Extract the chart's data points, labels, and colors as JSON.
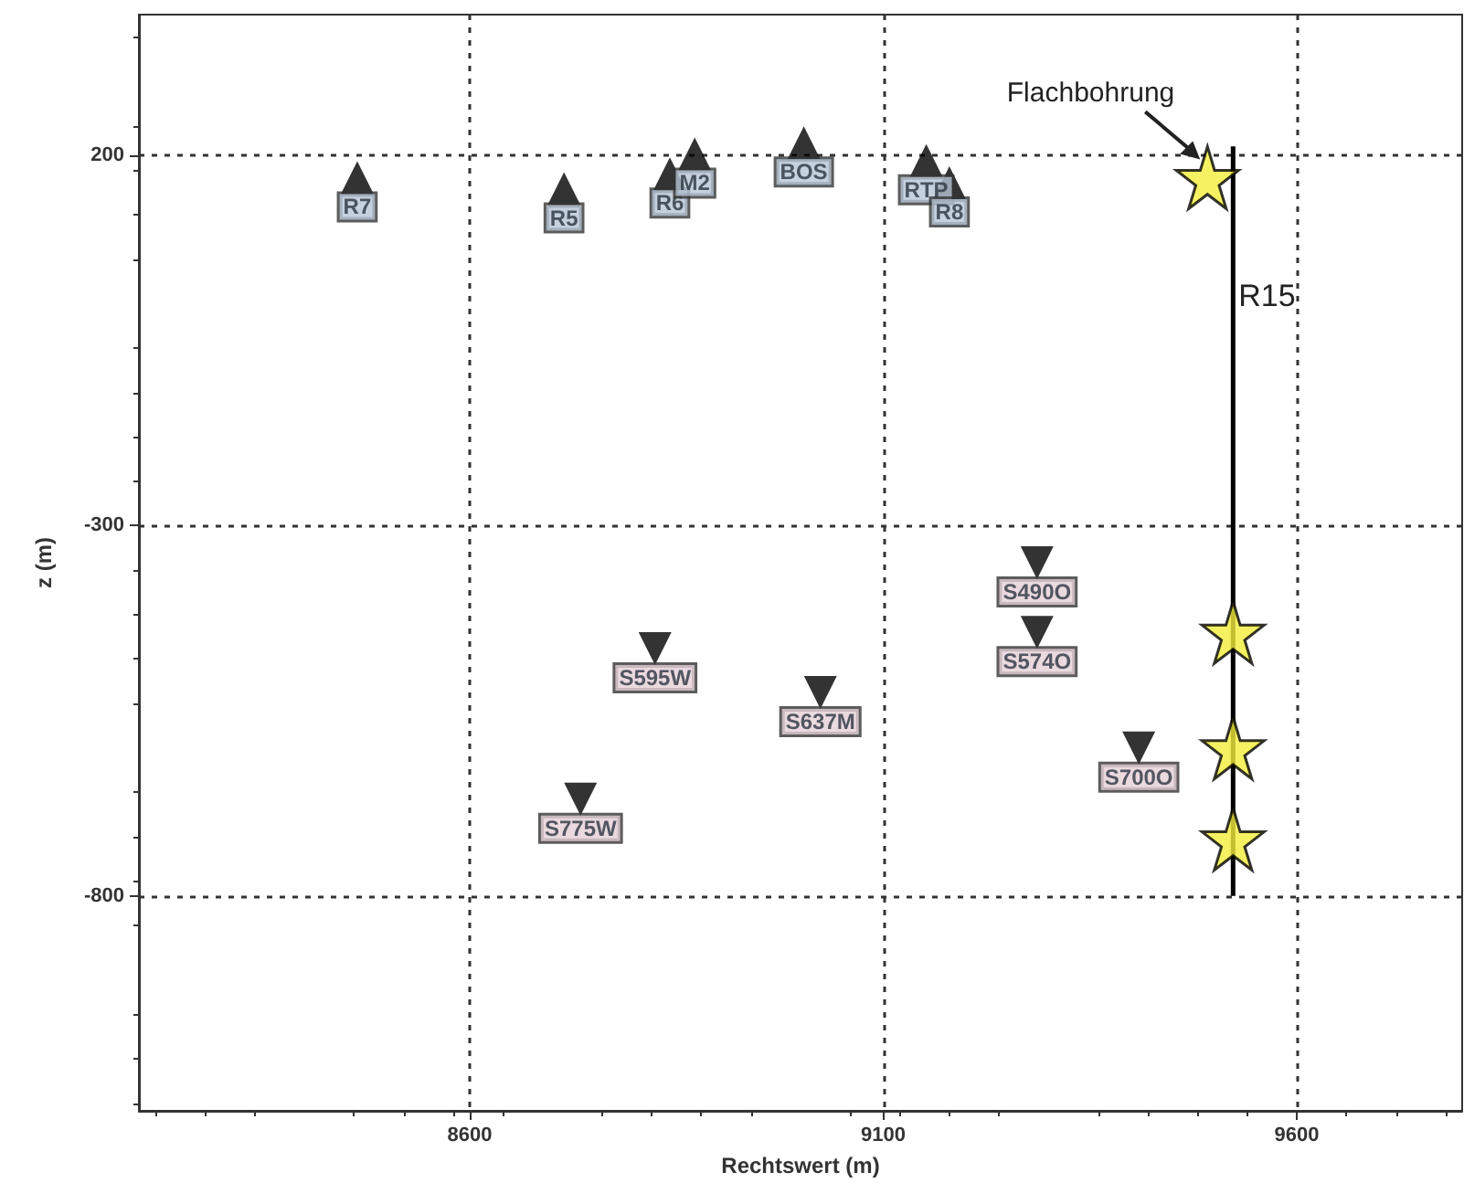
{
  "chart_data": {
    "type": "scatter",
    "xlabel": "Rechtswert (m)",
    "ylabel": "z (m)",
    "xlim": [
      8200,
      9800
    ],
    "xticks": [
      8600,
      9100,
      9600
    ],
    "ylim": [
      -1090,
      390
    ],
    "yticks": [
      -800,
      -300,
      200
    ],
    "grid": true,
    "legend": false,
    "series": [
      {
        "marker": "triangle",
        "color": "#000000",
        "x": [
          8464,
          8714,
          8842,
          8872,
          9004,
          9152,
          9180
        ],
        "values": [
          170,
          155,
          175,
          202,
          217,
          193,
          163
        ],
        "value_labels": [
          "R7",
          "R5",
          "R6",
          "M2",
          "BOS",
          "RTP",
          "R8"
        ]
      },
      {
        "marker": "triangle-down",
        "color": "#000000",
        "x": [
          9286,
          9286,
          8824,
          9024,
          9409,
          8734
        ],
        "values": [
          -350,
          -444,
          -466,
          -525,
          -600,
          -669
        ],
        "value_labels": [
          "S490O",
          "S574O",
          "S595W",
          "S637M",
          "S700O",
          "S775W"
        ]
      },
      {
        "type": "line",
        "name": "R15",
        "color": "#000000",
        "marker": "none",
        "x": [
          9523,
          9523
        ],
        "values": [
          212,
          -800
        ]
      },
      {
        "marker": "star",
        "color": "#f2ee3c",
        "x": [
          9492,
          9523,
          9523,
          9523
        ],
        "values": [
          170,
          -444,
          -600,
          -723
        ]
      }
    ],
    "annotations": [
      {
        "text": "Flachbohrung",
        "x": 9492,
        "y": 170
      }
    ]
  }
}
